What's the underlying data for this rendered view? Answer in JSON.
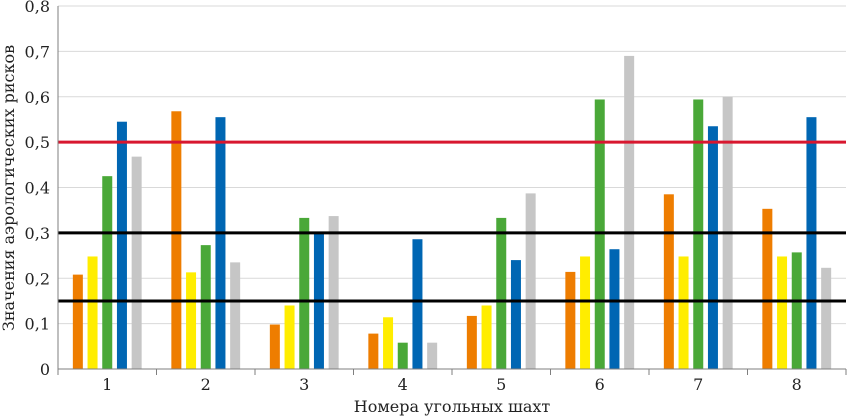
{
  "chart_data": {
    "type": "bar",
    "title": "",
    "xlabel": "Номера угольных шахт",
    "ylabel": "Значения аэрологических рисков",
    "ylim": [
      0,
      0.8
    ],
    "yticks": [
      "0",
      "0,1",
      "0,2",
      "0,3",
      "0,4",
      "0,5",
      "0,6",
      "0,7",
      "0,8"
    ],
    "categories": [
      "1",
      "2",
      "3",
      "4",
      "5",
      "6",
      "7",
      "8"
    ],
    "grid": true,
    "legend": "none",
    "series": [
      {
        "color": "#ee7d00",
        "values": [
          0.208,
          0.568,
          0.098,
          0.078,
          0.117,
          0.214,
          0.385,
          0.353
        ]
      },
      {
        "color": "#ffed00",
        "values": [
          0.248,
          0.213,
          0.14,
          0.114,
          0.14,
          0.248,
          0.248,
          0.248
        ]
      },
      {
        "color": "#4aa838",
        "values": [
          0.425,
          0.273,
          0.333,
          0.058,
          0.333,
          0.594,
          0.594,
          0.257
        ]
      },
      {
        "color": "#0066b3",
        "values": [
          0.545,
          0.555,
          0.302,
          0.286,
          0.24,
          0.264,
          0.535,
          0.555
        ]
      },
      {
        "color": "#c6c6c6",
        "values": [
          0.468,
          0.235,
          0.337,
          0.058,
          0.387,
          0.69,
          0.6,
          0.223
        ]
      }
    ],
    "reference_lines": [
      {
        "value": 0.5,
        "color": "#d8172f"
      },
      {
        "value": 0.3,
        "color": "#000000"
      },
      {
        "value": 0.15,
        "color": "#000000"
      }
    ]
  }
}
